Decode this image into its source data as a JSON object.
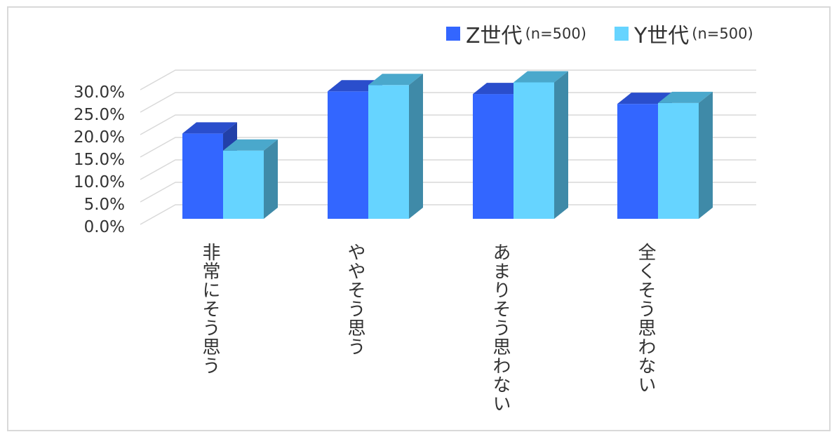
{
  "chart_data": {
    "type": "bar",
    "style": "3d-clustered-column",
    "categories": [
      "非常にそう思う",
      "ややそう思う",
      "あまりそう思わない",
      "全くそう思わない"
    ],
    "series": [
      {
        "name": "Z世代",
        "sample": "(n=500)",
        "values": [
          19.0,
          28.4,
          27.8,
          25.6
        ],
        "color": "#3366ff",
        "top": "#2a4ecc",
        "side": "#2240a8"
      },
      {
        "name": "Y世代",
        "sample": "(n=500)",
        "values": [
          15.2,
          29.8,
          30.4,
          25.8
        ],
        "color": "#66d4ff",
        "top": "#4aa8cc",
        "side": "#3f8aa8"
      }
    ],
    "yticks": [
      "0.0%",
      "5.0%",
      "10.0%",
      "15.0%",
      "20.0%",
      "25.0%",
      "30.0%"
    ],
    "ylim": [
      0,
      30
    ],
    "grid": true,
    "legend_position": "top-right"
  }
}
